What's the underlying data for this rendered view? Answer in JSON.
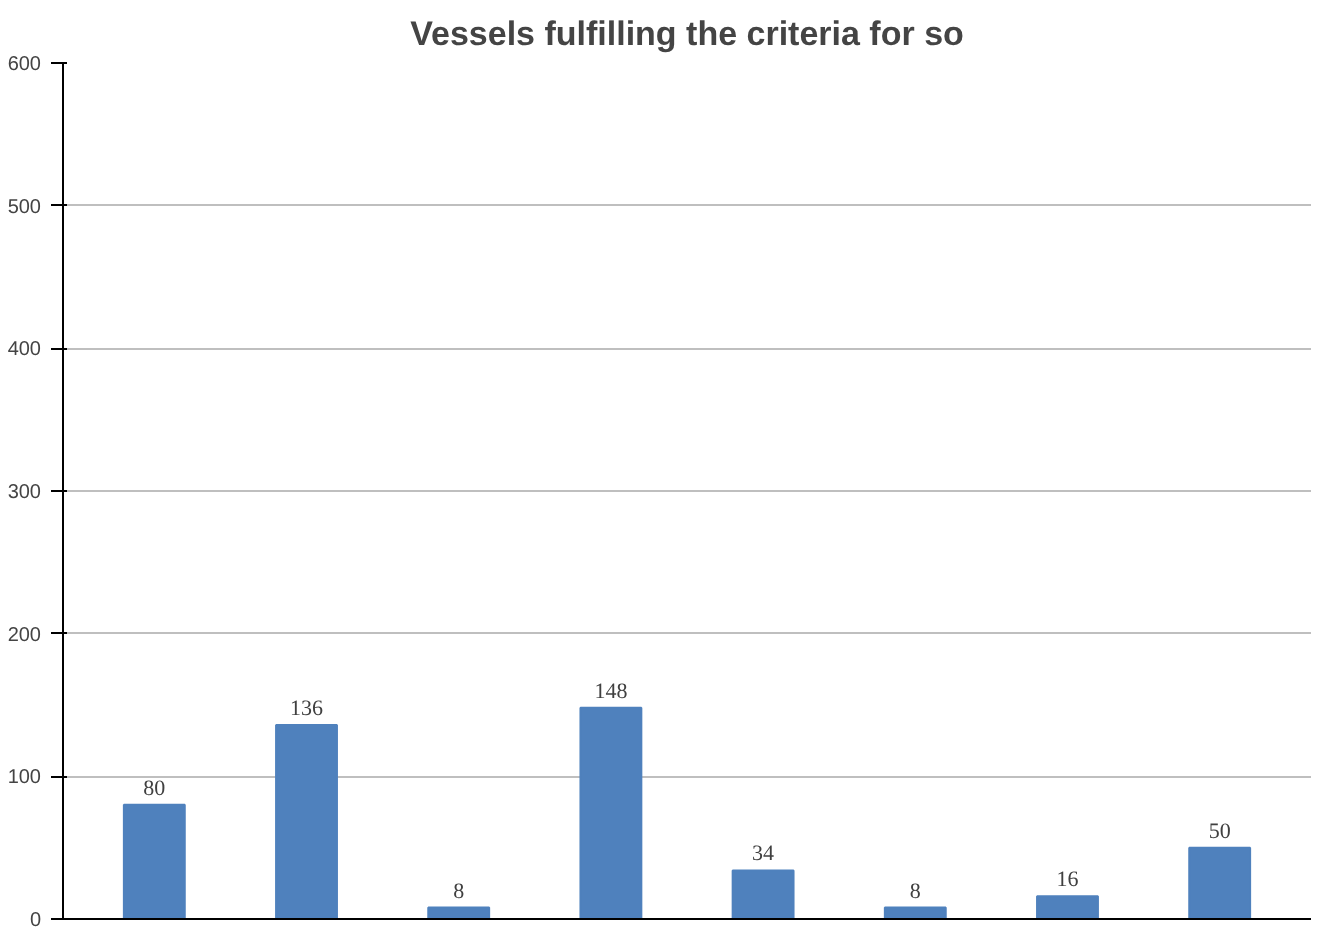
{
  "chart_data": {
    "type": "bar",
    "title": "Vessels fulfilling the criteria for so",
    "categories": [
      null,
      null,
      null,
      null,
      null,
      null,
      null,
      null
    ],
    "values": [
      80,
      136,
      8,
      148,
      34,
      8,
      16,
      50
    ],
    "color": "#4f81bd",
    "ylim": [
      0,
      600
    ],
    "yticks": [
      0,
      100,
      200,
      300,
      400,
      500,
      600
    ],
    "grid": "y",
    "data_labels": true,
    "tick_labels": "y"
  }
}
